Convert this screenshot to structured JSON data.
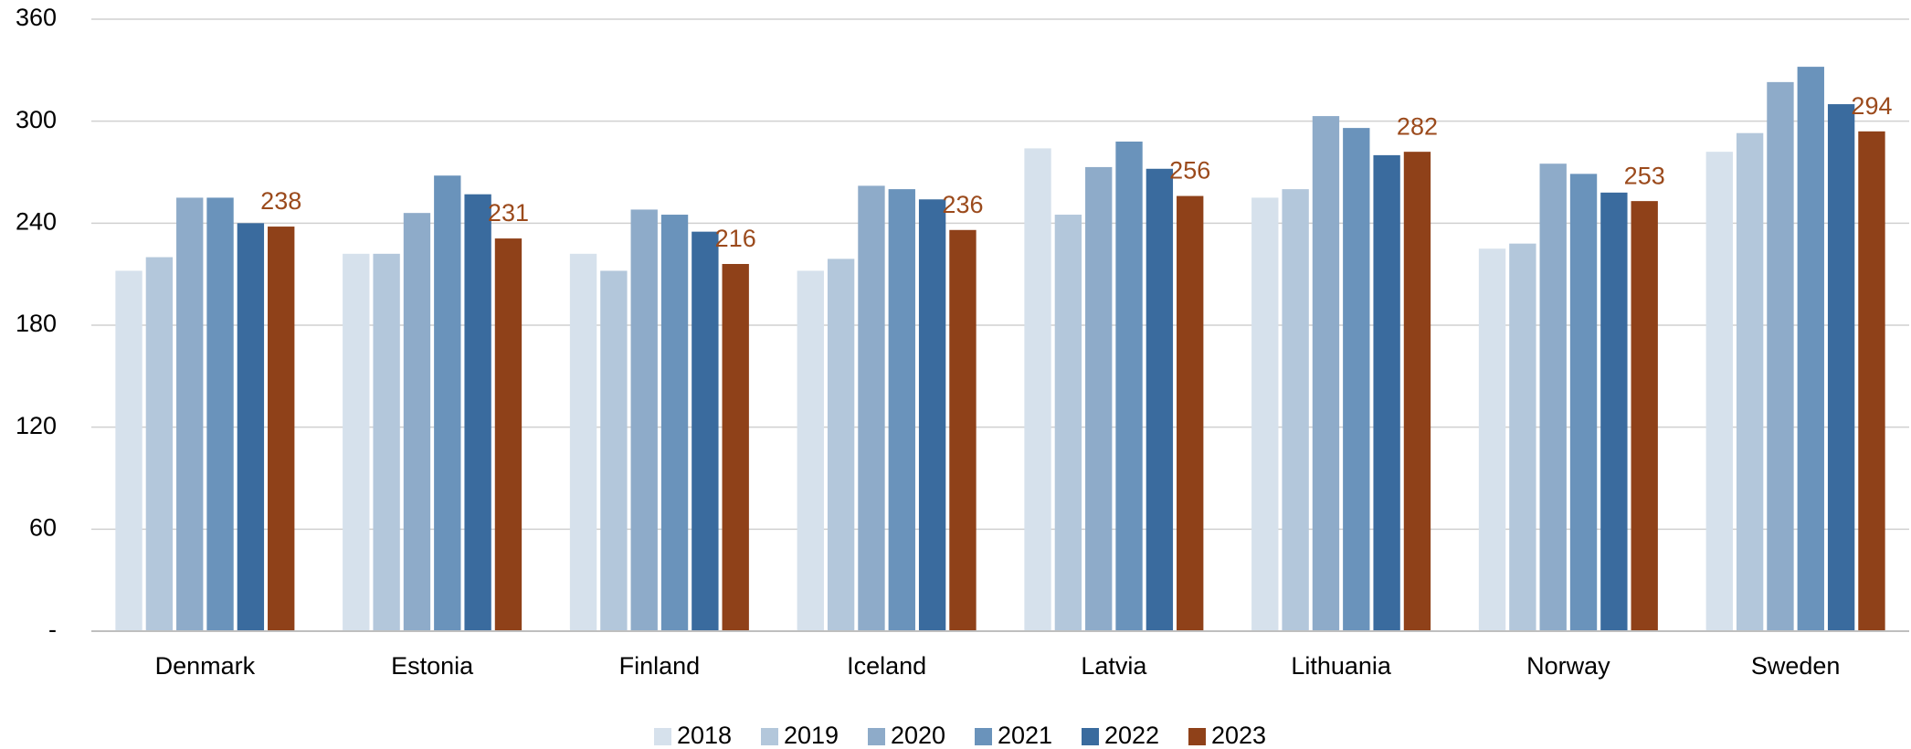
{
  "chart_data": {
    "type": "bar",
    "categories": [
      "Denmark",
      "Estonia",
      "Finland",
      "Iceland",
      "Latvia",
      "Lithuania",
      "Norway",
      "Sweden"
    ],
    "series": [
      {
        "name": "2018",
        "color": "#d6e1ec",
        "values": [
          212,
          222,
          222,
          212,
          284,
          255,
          225,
          282
        ]
      },
      {
        "name": "2019",
        "color": "#b3c7db",
        "values": [
          220,
          222,
          212,
          219,
          245,
          260,
          228,
          293
        ]
      },
      {
        "name": "2020",
        "color": "#8eabc9",
        "values": [
          255,
          246,
          248,
          262,
          273,
          303,
          275,
          323
        ]
      },
      {
        "name": "2021",
        "color": "#6a93bb",
        "values": [
          255,
          268,
          245,
          260,
          288,
          296,
          269,
          332
        ]
      },
      {
        "name": "2022",
        "color": "#3a6b9e",
        "values": [
          240,
          257,
          235,
          254,
          272,
          280,
          258,
          310
        ]
      },
      {
        "name": "2023",
        "color": "#8f4119",
        "values": [
          238,
          231,
          216,
          236,
          256,
          282,
          253,
          294
        ],
        "show_labels": true
      }
    ],
    "ylim": [
      0,
      360
    ],
    "yticks": [
      {
        "value": 0,
        "label": "-"
      },
      60,
      120,
      180,
      240,
      300,
      360
    ],
    "grid": true,
    "legend": "bottom"
  }
}
